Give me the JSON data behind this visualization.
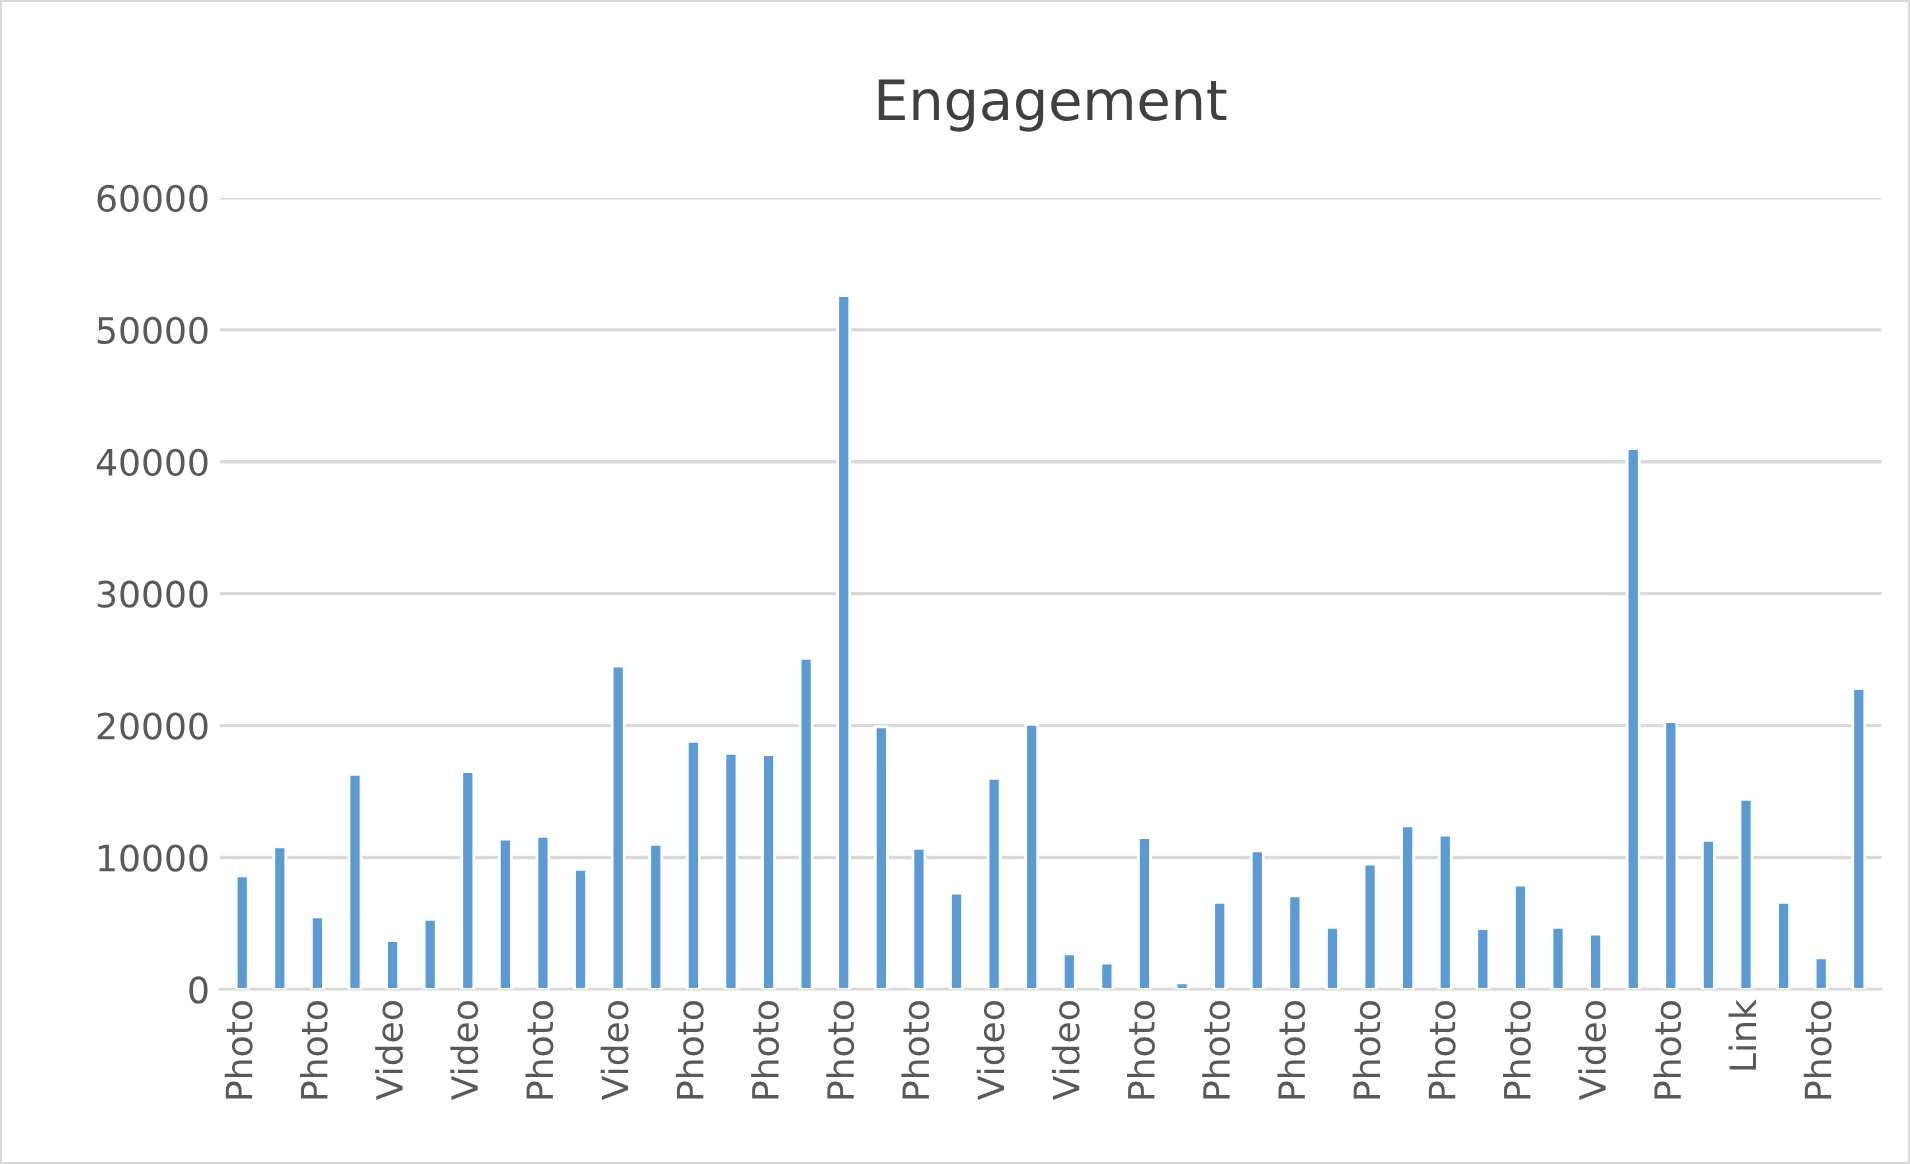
{
  "chart_data": {
    "type": "bar",
    "title": "Engagement",
    "categories": [
      "Photo",
      null,
      "Photo",
      null,
      "Video",
      null,
      "Video",
      null,
      "Photo",
      null,
      "Video",
      null,
      "Photo",
      null,
      "Photo",
      null,
      "Photo",
      null,
      "Photo",
      null,
      "Video",
      null,
      "Video",
      null,
      "Photo",
      null,
      "Photo",
      null,
      "Photo",
      null,
      "Photo",
      null,
      "Photo",
      null,
      "Photo",
      null,
      "Video",
      null,
      "Photo",
      null,
      "Link",
      null,
      "Photo",
      null
    ],
    "values": [
      8600,
      10800,
      5500,
      16300,
      3700,
      5300,
      16500,
      11400,
      11600,
      9100,
      24500,
      11000,
      18800,
      17900,
      17800,
      25100,
      52600,
      19900,
      10700,
      7300,
      16000,
      20100,
      2700,
      2000,
      11500,
      500,
      6600,
      10500,
      7100,
      4700,
      9500,
      12400,
      11700,
      4600,
      7900,
      4700,
      4200,
      41000,
      20300,
      11300,
      14400,
      6600,
      2400,
      22800
    ],
    "color": "#5b9bd5",
    "ylim": [
      0,
      60000
    ],
    "yticks": [
      0,
      10000,
      20000,
      30000,
      40000,
      50000,
      60000
    ],
    "grid": "y",
    "legend": false
  }
}
